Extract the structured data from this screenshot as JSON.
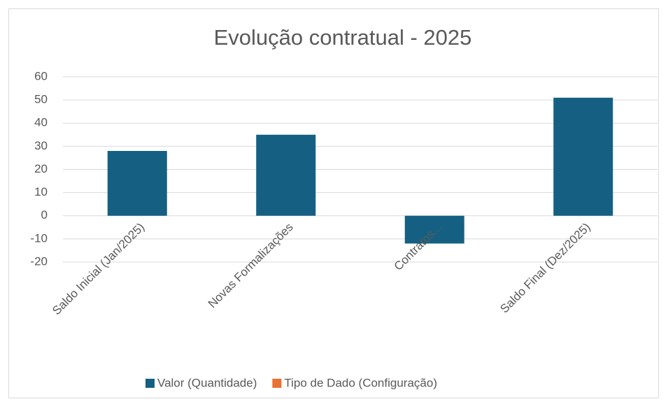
{
  "chart_data": {
    "type": "bar",
    "title": "Evolução contratual - 2025",
    "categories": [
      "Saldo Inicial (Jan/2025)",
      "Novas Formalizações",
      "Contratos...",
      "Saldo Final (Dez/2025)"
    ],
    "series": [
      {
        "name": "Valor (Quantidade)",
        "color": "#156082",
        "values": [
          28,
          35,
          -12,
          51
        ]
      },
      {
        "name": "Tipo de Dado (Configuração)",
        "color": "#e97132",
        "values": [
          null,
          null,
          null,
          null
        ]
      }
    ],
    "ylim": [
      -20,
      60
    ],
    "yticks": [
      -20,
      -10,
      0,
      10,
      20,
      30,
      40,
      50,
      60
    ],
    "grid": true,
    "legend": "bottom"
  }
}
